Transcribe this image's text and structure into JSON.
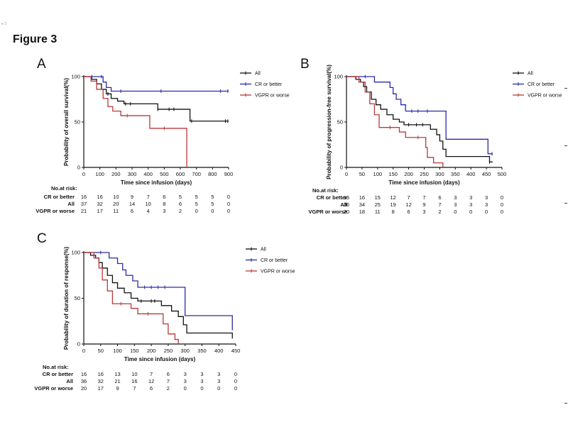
{
  "page": {
    "corner_text": "e 3",
    "figure_title": "Figure 3",
    "colors": {
      "all": "#111111",
      "cr": "#2a2aa8",
      "vgpr": "#b8393a"
    }
  },
  "risk_title": "No.at risk:",
  "chart_data": [
    {
      "panel": "A",
      "type": "line",
      "step": true,
      "xlabel": "Time since infusion (days)",
      "ylabel": "Probability of overall survival(%)",
      "xlim": [
        0,
        900
      ],
      "ylim": [
        0,
        100
      ],
      "xticks": [
        0,
        100,
        200,
        300,
        400,
        500,
        600,
        700,
        800,
        900
      ],
      "yticks": [
        0,
        50,
        100
      ],
      "legend": "top-right",
      "series": [
        {
          "name": "All",
          "color": "#111111",
          "points": [
            [
              0,
              100
            ],
            [
              50,
              97
            ],
            [
              80,
              92
            ],
            [
              110,
              86
            ],
            [
              140,
              81
            ],
            [
              170,
              76
            ],
            [
              210,
              73
            ],
            [
              250,
              70
            ],
            [
              400,
              70
            ],
            [
              460,
              64
            ],
            [
              640,
              64
            ],
            [
              660,
              51
            ],
            [
              900,
              51
            ]
          ],
          "censors": [
            [
              150,
              81
            ],
            [
              260,
              70
            ],
            [
              290,
              70
            ],
            [
              460,
              64
            ],
            [
              530,
              64
            ],
            [
              560,
              64
            ],
            [
              670,
              51
            ],
            [
              880,
              51
            ],
            [
              895,
              51
            ]
          ]
        },
        {
          "name": "CR or better",
          "color": "#2a2aa8",
          "points": [
            [
              0,
              100
            ],
            [
              100,
              100
            ],
            [
              120,
              94
            ],
            [
              140,
              88
            ],
            [
              170,
              84
            ],
            [
              900,
              84
            ]
          ],
          "censors": [
            [
              50,
              100
            ],
            [
              110,
              100
            ],
            [
              230,
              84
            ],
            [
              480,
              84
            ],
            [
              850,
              84
            ],
            [
              895,
              84
            ]
          ]
        },
        {
          "name": "VGPR or worse",
          "color": "#b8393a",
          "points": [
            [
              0,
              100
            ],
            [
              45,
              95
            ],
            [
              80,
              86
            ],
            [
              120,
              76
            ],
            [
              150,
              67
            ],
            [
              180,
              62
            ],
            [
              230,
              57
            ],
            [
              400,
              57
            ],
            [
              410,
              43
            ],
            [
              630,
              43
            ],
            [
              640,
              0
            ]
          ],
          "censors": [
            [
              270,
              57
            ],
            [
              500,
              43
            ]
          ]
        }
      ],
      "risk": {
        "times": [
          0,
          100,
          200,
          300,
          400,
          500,
          600,
          700,
          800,
          900
        ],
        "rows": [
          {
            "label": "CR or better",
            "values": [
              16,
              16,
              10,
              9,
              7,
              6,
              5,
              5,
              5,
              0
            ]
          },
          {
            "label": "All",
            "values": [
              37,
              32,
              20,
              14,
              10,
              8,
              6,
              5,
              5,
              0
            ]
          },
          {
            "label": "VGPR or worse",
            "values": [
              21,
              17,
              11,
              6,
              4,
              3,
              2,
              0,
              0,
              0
            ]
          }
        ]
      }
    },
    {
      "panel": "B",
      "type": "line",
      "step": true,
      "xlabel": "Time since infusion (days)",
      "ylabel": "Probability of progression-free survival(%)",
      "xlim": [
        0,
        500
      ],
      "ylim": [
        0,
        100
      ],
      "xticks": [
        0,
        50,
        100,
        150,
        200,
        250,
        300,
        350,
        400,
        450,
        500
      ],
      "yticks": [
        0,
        50,
        100
      ],
      "legend": "top-right",
      "series": [
        {
          "name": "All",
          "color": "#111111",
          "points": [
            [
              0,
              100
            ],
            [
              30,
              97
            ],
            [
              45,
              94
            ],
            [
              55,
              89
            ],
            [
              65,
              83
            ],
            [
              80,
              75
            ],
            [
              95,
              69
            ],
            [
              110,
              64
            ],
            [
              130,
              58
            ],
            [
              150,
              53
            ],
            [
              170,
              50
            ],
            [
              185,
              47
            ],
            [
              260,
              47
            ],
            [
              270,
              42
            ],
            [
              290,
              36
            ],
            [
              300,
              29
            ],
            [
              310,
              20
            ],
            [
              320,
              12
            ],
            [
              450,
              12
            ],
            [
              460,
              6
            ],
            [
              470,
              6
            ]
          ],
          "censors": [
            [
              200,
              47
            ],
            [
              225,
              47
            ],
            [
              245,
              47
            ],
            [
              460,
              6
            ]
          ]
        },
        {
          "name": "CR or better",
          "color": "#2a2aa8",
          "points": [
            [
              0,
              100
            ],
            [
              80,
              100
            ],
            [
              90,
              94
            ],
            [
              130,
              94
            ],
            [
              140,
              88
            ],
            [
              150,
              81
            ],
            [
              160,
              75
            ],
            [
              175,
              69
            ],
            [
              190,
              62
            ],
            [
              310,
              62
            ],
            [
              320,
              31
            ],
            [
              450,
              31
            ],
            [
              455,
              15
            ],
            [
              470,
              15
            ]
          ],
          "censors": [
            [
              60,
              100
            ],
            [
              210,
              62
            ],
            [
              230,
              62
            ],
            [
              260,
              62
            ],
            [
              468,
              15
            ]
          ]
        },
        {
          "name": "VGPR or worse",
          "color": "#b8393a",
          "points": [
            [
              0,
              100
            ],
            [
              40,
              94
            ],
            [
              60,
              83
            ],
            [
              75,
              70
            ],
            [
              90,
              58
            ],
            [
              105,
              44
            ],
            [
              150,
              44
            ],
            [
              170,
              39
            ],
            [
              190,
              33
            ],
            [
              240,
              33
            ],
            [
              255,
              22
            ],
            [
              260,
              11
            ],
            [
              280,
              5
            ],
            [
              300,
              5
            ],
            [
              310,
              0
            ]
          ],
          "censors": [
            [
              140,
              44
            ],
            [
              230,
              33
            ]
          ]
        }
      ],
      "risk": {
        "times": [
          0,
          50,
          100,
          150,
          200,
          250,
          300,
          350,
          400,
          450,
          500
        ],
        "rows": [
          {
            "label": "CR or better",
            "values": [
              16,
              16,
              15,
              12,
              7,
              7,
              6,
              3,
              3,
              3,
              0
            ]
          },
          {
            "label": "All",
            "values": [
              36,
              34,
              25,
              19,
              12,
              9,
              7,
              3,
              3,
              3,
              0
            ]
          },
          {
            "label": "VGPR or worse",
            "values": [
              20,
              18,
              11,
              8,
              6,
              3,
              2,
              0,
              0,
              0,
              0
            ]
          }
        ]
      }
    },
    {
      "panel": "C",
      "type": "line",
      "step": true,
      "xlabel": "Time since infusion (days)",
      "ylabel": "Probability of duration of response(%)",
      "xlim": [
        0,
        450
      ],
      "ylim": [
        0,
        100
      ],
      "xticks": [
        0,
        50,
        100,
        150,
        200,
        250,
        300,
        350,
        400,
        450
      ],
      "yticks": [
        0,
        50,
        100
      ],
      "legend": "top-right",
      "series": [
        {
          "name": "All",
          "color": "#111111",
          "points": [
            [
              0,
              100
            ],
            [
              20,
              97
            ],
            [
              35,
              94
            ],
            [
              45,
              89
            ],
            [
              55,
              83
            ],
            [
              70,
              75
            ],
            [
              85,
              67
            ],
            [
              100,
              61
            ],
            [
              120,
              56
            ],
            [
              140,
              50
            ],
            [
              160,
              47
            ],
            [
              220,
              47
            ],
            [
              230,
              42
            ],
            [
              260,
              36
            ],
            [
              280,
              30
            ],
            [
              295,
              21
            ],
            [
              305,
              12
            ],
            [
              435,
              12
            ],
            [
              440,
              6
            ]
          ],
          "censors": [
            [
              170,
              47
            ],
            [
              200,
              47
            ],
            [
              210,
              47
            ]
          ]
        },
        {
          "name": "CR or better",
          "color": "#2a2aa8",
          "points": [
            [
              0,
              100
            ],
            [
              60,
              100
            ],
            [
              75,
              94
            ],
            [
              100,
              88
            ],
            [
              115,
              81
            ],
            [
              125,
              75
            ],
            [
              145,
              69
            ],
            [
              160,
              62
            ],
            [
              290,
              62
            ],
            [
              300,
              31
            ],
            [
              435,
              31
            ],
            [
              440,
              15
            ]
          ],
          "censors": [
            [
              50,
              100
            ],
            [
              180,
              62
            ],
            [
              200,
              62
            ],
            [
              220,
              62
            ],
            [
              240,
              62
            ]
          ]
        },
        {
          "name": "VGPR or worse",
          "color": "#b8393a",
          "points": [
            [
              0,
              100
            ],
            [
              30,
              94
            ],
            [
              45,
              83
            ],
            [
              55,
              70
            ],
            [
              70,
              58
            ],
            [
              85,
              44
            ],
            [
              120,
              44
            ],
            [
              140,
              39
            ],
            [
              160,
              33
            ],
            [
              220,
              33
            ],
            [
              235,
              22
            ],
            [
              250,
              11
            ],
            [
              270,
              5
            ],
            [
              280,
              0
            ]
          ],
          "censors": [
            [
              110,
              44
            ],
            [
              190,
              33
            ]
          ]
        }
      ],
      "risk": {
        "times": [
          0,
          50,
          100,
          150,
          200,
          250,
          300,
          350,
          400,
          450
        ],
        "rows": [
          {
            "label": "CR or better",
            "values": [
              16,
              16,
              13,
              10,
              7,
              6,
              3,
              3,
              3,
              0
            ]
          },
          {
            "label": "All",
            "values": [
              36,
              32,
              21,
              16,
              12,
              7,
              3,
              3,
              3,
              0
            ]
          },
          {
            "label": "VGPR or worse",
            "values": [
              20,
              17,
              9,
              7,
              6,
              2,
              0,
              0,
              0,
              0
            ]
          }
        ]
      }
    }
  ]
}
